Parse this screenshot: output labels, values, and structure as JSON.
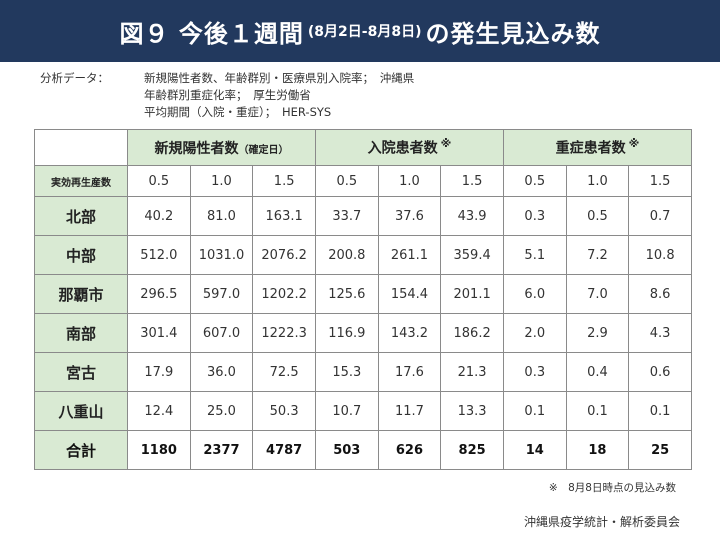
{
  "title": {
    "main_prefix": "図９ 今後１週間",
    "range": "(8月2日-8月8日)",
    "main_suffix": "の発生見込み数"
  },
  "source": [
    {
      "label": "分析データ：",
      "text": "新規陽性者数、年齢群別・医療県別入院率；　沖縄県"
    },
    {
      "label": "",
      "text": "年齢群別重症化率；　厚生労働省"
    },
    {
      "label": "",
      "text": "平均期間（入院・重症）；　HER-SYS"
    }
  ],
  "table": {
    "groups": [
      {
        "label": "新規陽性者数",
        "small": "（確定日）",
        "note": ""
      },
      {
        "label": "入院患者数",
        "small": "",
        "note": "※"
      },
      {
        "label": "重症患者数",
        "small": "",
        "note": "※"
      }
    ],
    "rt_label": "実効再生産数",
    "rt_values": [
      "0.5",
      "1.0",
      "1.5",
      "0.5",
      "1.0",
      "1.5",
      "0.5",
      "1.0",
      "1.5"
    ],
    "rows": [
      {
        "label": "北部",
        "values": [
          "40.2",
          "81.0",
          "163.1",
          "33.7",
          "37.6",
          "43.9",
          "0.3",
          "0.5",
          "0.7"
        ]
      },
      {
        "label": "中部",
        "values": [
          "512.0",
          "1031.0",
          "2076.2",
          "200.8",
          "261.1",
          "359.4",
          "5.1",
          "7.2",
          "10.8"
        ]
      },
      {
        "label": "那覇市",
        "values": [
          "296.5",
          "597.0",
          "1202.2",
          "125.6",
          "154.4",
          "201.1",
          "6.0",
          "7.0",
          "8.6"
        ]
      },
      {
        "label": "南部",
        "values": [
          "301.4",
          "607.0",
          "1222.3",
          "116.9",
          "143.2",
          "186.2",
          "2.0",
          "2.9",
          "4.3"
        ]
      },
      {
        "label": "宮古",
        "values": [
          "17.9",
          "36.0",
          "72.5",
          "15.3",
          "17.6",
          "21.3",
          "0.3",
          "0.4",
          "0.6"
        ]
      },
      {
        "label": "八重山",
        "values": [
          "12.4",
          "25.0",
          "50.3",
          "10.7",
          "11.7",
          "13.3",
          "0.1",
          "0.1",
          "0.1"
        ]
      },
      {
        "label": "合計",
        "values": [
          "1180",
          "2377",
          "4787",
          "503",
          "626",
          "825",
          "14",
          "18",
          "25"
        ]
      }
    ]
  },
  "footnote": "※　8月8日時点の見込み数",
  "organization": "沖縄県疫学統計・解析委員会",
  "colors": {
    "title_bg": "#22395e",
    "header_bg": "#d9ead3",
    "border": "#8a8a8a"
  }
}
